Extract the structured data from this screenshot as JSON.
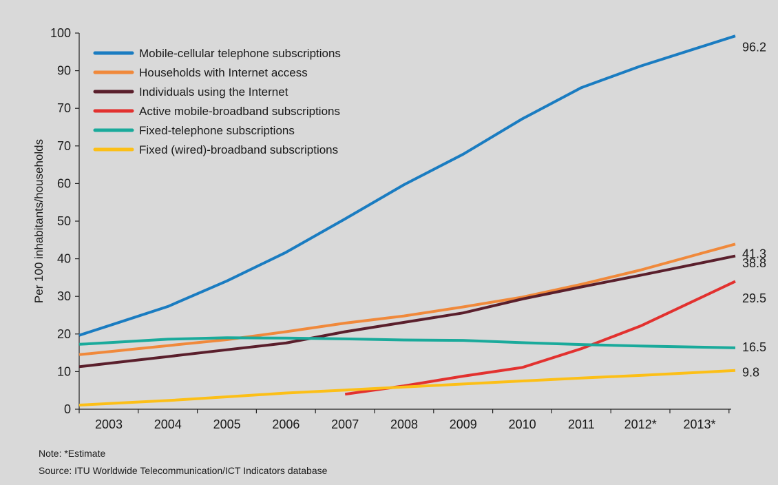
{
  "chart_data": {
    "type": "line",
    "title": "",
    "xlabel": "",
    "ylabel": "Per 100 inhabitants/households",
    "categories": [
      "2003",
      "2004",
      "2005",
      "2006",
      "2007",
      "2008",
      "2009",
      "2010",
      "2011",
      "2012*",
      "2013*"
    ],
    "y_ticks": [
      "0",
      "10",
      "20",
      "30",
      "40",
      "50",
      "60",
      "70",
      "70",
      "90",
      "100"
    ],
    "ylim": [
      0,
      100
    ],
    "grid": false,
    "legend_position": "top-left",
    "series": [
      {
        "name": "Mobile-cellular telephone subscriptions",
        "color": "#1a7cc1",
        "values": [
          22.2,
          27.3,
          34.1,
          41.7,
          50.6,
          59.7,
          67.8,
          77.2,
          85.5,
          91.2,
          96.2
        ],
        "end_label": "96.2"
      },
      {
        "name": "Households with Internet access",
        "color": "#f0893b",
        "values": [
          15.3,
          16.9,
          18.5,
          20.6,
          22.9,
          24.8,
          27.2,
          29.8,
          33.2,
          37.0,
          41.3
        ],
        "end_label": "41.3"
      },
      {
        "name": "Individuals using the Internet",
        "color": "#5a1f2c",
        "values": [
          12.2,
          14.0,
          15.8,
          17.6,
          20.6,
          23.1,
          25.6,
          29.3,
          32.5,
          35.6,
          38.8
        ],
        "end_label": "38.8"
      },
      {
        "name": "Active mobile-broadband subscriptions",
        "color": "#e2312f",
        "values": [
          null,
          null,
          null,
          null,
          4.0,
          6.2,
          8.8,
          11.1,
          16.1,
          22.1,
          29.5
        ],
        "end_label": "29.5"
      },
      {
        "name": "Fixed-telephone subscriptions",
        "color": "#1aaa9b",
        "values": [
          17.7,
          18.6,
          19.0,
          18.9,
          18.7,
          18.4,
          18.3,
          17.7,
          17.2,
          16.8,
          16.5
        ],
        "end_label": "16.5"
      },
      {
        "name": "Fixed (wired)-broadband subscriptions",
        "color": "#fcbf17",
        "values": [
          1.5,
          2.3,
          3.3,
          4.3,
          5.1,
          5.9,
          6.7,
          7.5,
          8.3,
          9.0,
          9.8
        ],
        "end_label": "9.8"
      }
    ]
  },
  "note": "Note: *Estimate",
  "source": "Source: ITU Worldwide Telecommunication/ICT Indicators database"
}
